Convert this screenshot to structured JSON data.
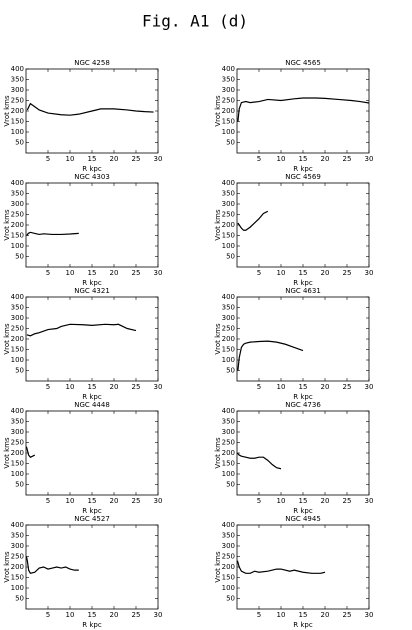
{
  "title": "Fig. A1 (d)",
  "chart_data": [
    {
      "type": "line",
      "title": "NGC 4258",
      "xlabel": "R kpc",
      "ylabel": "Vrot kms",
      "color": "#000000",
      "xlim": [
        0,
        30
      ],
      "ylim": [
        0,
        400
      ],
      "xticks": [
        5,
        10,
        15,
        20,
        25,
        30
      ],
      "yticks": [
        50,
        100,
        150,
        200,
        250,
        300,
        350,
        400
      ],
      "x": [
        0.3,
        1,
        2,
        3,
        5,
        8,
        10,
        12,
        15,
        17,
        20,
        23,
        25,
        27,
        29
      ],
      "values": [
        205,
        235,
        220,
        205,
        190,
        182,
        180,
        185,
        200,
        210,
        210,
        205,
        200,
        197,
        195
      ]
    },
    {
      "type": "line",
      "title": "NGC 4565",
      "xlabel": "R kpc",
      "ylabel": "Vrot kms",
      "color": "#000000",
      "xlim": [
        0,
        30
      ],
      "ylim": [
        0,
        400
      ],
      "xticks": [
        5,
        10,
        15,
        20,
        25,
        30
      ],
      "yticks": [
        50,
        100,
        150,
        200,
        250,
        300,
        350,
        400
      ],
      "x": [
        0.2,
        0.5,
        1,
        2,
        3,
        5,
        7,
        10,
        13,
        15,
        18,
        20,
        23,
        26,
        28,
        30
      ],
      "values": [
        150,
        210,
        240,
        245,
        240,
        245,
        255,
        250,
        258,
        262,
        262,
        260,
        255,
        250,
        245,
        238
      ]
    },
    {
      "type": "line",
      "title": "NGC 4303",
      "xlabel": "R kpc",
      "ylabel": "Vrot kms",
      "color": "#000000",
      "xlim": [
        0,
        30
      ],
      "ylim": [
        0,
        400
      ],
      "xticks": [
        5,
        10,
        15,
        20,
        25,
        30
      ],
      "yticks": [
        50,
        100,
        150,
        200,
        250,
        300,
        350,
        400
      ],
      "x": [
        0.2,
        0.5,
        1,
        2,
        3,
        4,
        6,
        8,
        10,
        12
      ],
      "values": [
        150,
        160,
        165,
        160,
        155,
        158,
        155,
        155,
        157,
        160
      ]
    },
    {
      "type": "line",
      "title": "NGC 4569",
      "xlabel": "R kpc",
      "ylabel": "Vrot kms",
      "color": "#000000",
      "xlim": [
        0,
        30
      ],
      "ylim": [
        0,
        400
      ],
      "xticks": [
        5,
        10,
        15,
        20,
        25,
        30
      ],
      "yticks": [
        50,
        100,
        150,
        200,
        250,
        300,
        350,
        400
      ],
      "x": [
        0.2,
        0.5,
        1,
        1.5,
        2,
        3,
        4,
        5,
        6,
        7
      ],
      "values": [
        210,
        200,
        185,
        175,
        175,
        190,
        210,
        230,
        255,
        265
      ]
    },
    {
      "type": "line",
      "title": "NGC 4321",
      "xlabel": "R kpc",
      "ylabel": "Vrot kms",
      "color": "#000000",
      "xlim": [
        0,
        30
      ],
      "ylim": [
        0,
        400
      ],
      "xticks": [
        5,
        10,
        15,
        20,
        25,
        30
      ],
      "yticks": [
        50,
        100,
        150,
        200,
        250,
        300,
        350,
        400
      ],
      "x": [
        0.2,
        1,
        2,
        3,
        5,
        7,
        8,
        10,
        13,
        15,
        18,
        20,
        21,
        23,
        25
      ],
      "values": [
        220,
        215,
        225,
        230,
        245,
        250,
        260,
        270,
        268,
        265,
        270,
        268,
        270,
        250,
        240
      ]
    },
    {
      "type": "line",
      "title": "NGC 4631",
      "xlabel": "R kpc",
      "ylabel": "Vrot kms",
      "color": "#000000",
      "xlim": [
        0,
        30
      ],
      "ylim": [
        0,
        400
      ],
      "xticks": [
        5,
        10,
        15,
        20,
        25,
        30
      ],
      "yticks": [
        50,
        100,
        150,
        200,
        250,
        300,
        350,
        400
      ],
      "x": [
        0.2,
        0.5,
        1,
        1.5,
        2,
        3,
        5,
        7,
        9,
        11,
        13,
        15
      ],
      "values": [
        50,
        110,
        160,
        175,
        180,
        185,
        188,
        190,
        185,
        175,
        160,
        145
      ]
    },
    {
      "type": "line",
      "title": "NGC 4448",
      "xlabel": "R kpc",
      "ylabel": "Vrot kms",
      "color": "#000000",
      "xlim": [
        0,
        30
      ],
      "ylim": [
        0,
        400
      ],
      "xticks": [
        5,
        10,
        15,
        20,
        25,
        30
      ],
      "yticks": [
        50,
        100,
        150,
        200,
        250,
        300,
        350,
        400
      ],
      "x": [
        0.1,
        0.3,
        0.6,
        1,
        1.5,
        2
      ],
      "values": [
        230,
        215,
        190,
        180,
        185,
        190
      ]
    },
    {
      "type": "line",
      "title": "NGC 4736",
      "xlabel": "R kpc",
      "ylabel": "Vrot kms",
      "color": "#000000",
      "xlim": [
        0,
        30
      ],
      "ylim": [
        0,
        400
      ],
      "xticks": [
        5,
        10,
        15,
        20,
        25,
        30
      ],
      "yticks": [
        50,
        100,
        150,
        200,
        250,
        300,
        350,
        400
      ],
      "x": [
        0.1,
        0.5,
        1,
        2,
        3,
        4,
        5,
        6,
        7,
        8,
        9,
        10
      ],
      "values": [
        200,
        190,
        185,
        180,
        175,
        175,
        180,
        180,
        165,
        145,
        130,
        125
      ]
    },
    {
      "type": "line",
      "title": "NGC 4527",
      "xlabel": "R kpc",
      "ylabel": "Vrot kms",
      "color": "#000000",
      "xlim": [
        0,
        30
      ],
      "ylim": [
        0,
        400
      ],
      "xticks": [
        5,
        10,
        15,
        20,
        25,
        30
      ],
      "yticks": [
        50,
        100,
        150,
        200,
        250,
        300,
        350,
        400
      ],
      "x": [
        0.1,
        0.3,
        0.6,
        1,
        2,
        3,
        4,
        5,
        6,
        7,
        8,
        9,
        10,
        11,
        12
      ],
      "values": [
        250,
        230,
        185,
        170,
        175,
        195,
        200,
        190,
        195,
        200,
        195,
        200,
        190,
        185,
        185
      ]
    },
    {
      "type": "line",
      "title": "NGC 4945",
      "xlabel": "R kpc",
      "ylabel": "Vrot kms",
      "color": "#000000",
      "xlim": [
        0,
        30
      ],
      "ylim": [
        0,
        400
      ],
      "xticks": [
        5,
        10,
        15,
        20,
        25,
        30
      ],
      "yticks": [
        50,
        100,
        150,
        200,
        250,
        300,
        350,
        400
      ],
      "x": [
        0.1,
        0.5,
        1,
        2,
        3,
        4,
        5,
        7,
        9,
        10,
        12,
        13,
        15,
        17,
        19,
        20
      ],
      "values": [
        230,
        200,
        180,
        170,
        170,
        180,
        175,
        180,
        190,
        190,
        180,
        185,
        175,
        170,
        170,
        175
      ]
    }
  ]
}
